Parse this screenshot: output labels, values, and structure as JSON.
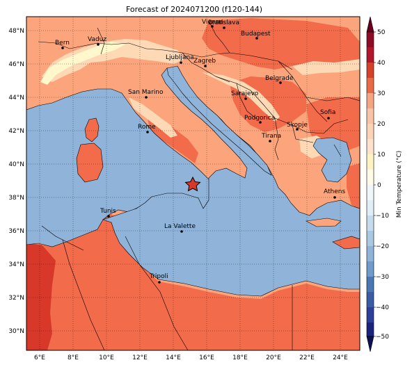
{
  "title": "Forecast of 2024071200 (f120-144)",
  "colorbar": {
    "label": "Min Temperature (°C)",
    "ticks": [
      "50",
      "40",
      "30",
      "20",
      "10",
      "0",
      "−10",
      "−20",
      "−30",
      "−40",
      "−50"
    ]
  },
  "axes": {
    "lat_ticks": [
      "48°N",
      "46°N",
      "44°N",
      "42°N",
      "40°N",
      "38°N",
      "36°N",
      "34°N",
      "32°N",
      "30°N"
    ],
    "lon_ticks": [
      "6°E",
      "8°E",
      "10°E",
      "12°E",
      "14°E",
      "16°E",
      "18°E",
      "20°E",
      "22°E",
      "24°E"
    ]
  },
  "cities": [
    {
      "name": "Vienna"
    },
    {
      "name": "Bratislava"
    },
    {
      "name": "Vaduz"
    },
    {
      "name": "Bern"
    },
    {
      "name": "Budapest"
    },
    {
      "name": "Ljubljana"
    },
    {
      "name": "Zagreb"
    },
    {
      "name": "Belgrade"
    },
    {
      "name": "San Marino"
    },
    {
      "name": "Sarajevo"
    },
    {
      "name": "Sofia"
    },
    {
      "name": "Podgorica"
    },
    {
      "name": "Skopje"
    },
    {
      "name": "Rome"
    },
    {
      "name": "Tirana"
    },
    {
      "name": "Athens"
    },
    {
      "name": "Tunis"
    },
    {
      "name": "La Valette"
    },
    {
      "name": "Tripoli"
    }
  ],
  "colors": {
    "sea": "#8fb3d9",
    "warm_20_30": "#fca57d",
    "warm_30_40": "#f26b4a",
    "hot_40_50": "#d7382a",
    "mild_10_20": "#fdd9b5",
    "cool_0_10": "#fff8cc"
  },
  "marker": {
    "icon": "star-icon"
  }
}
